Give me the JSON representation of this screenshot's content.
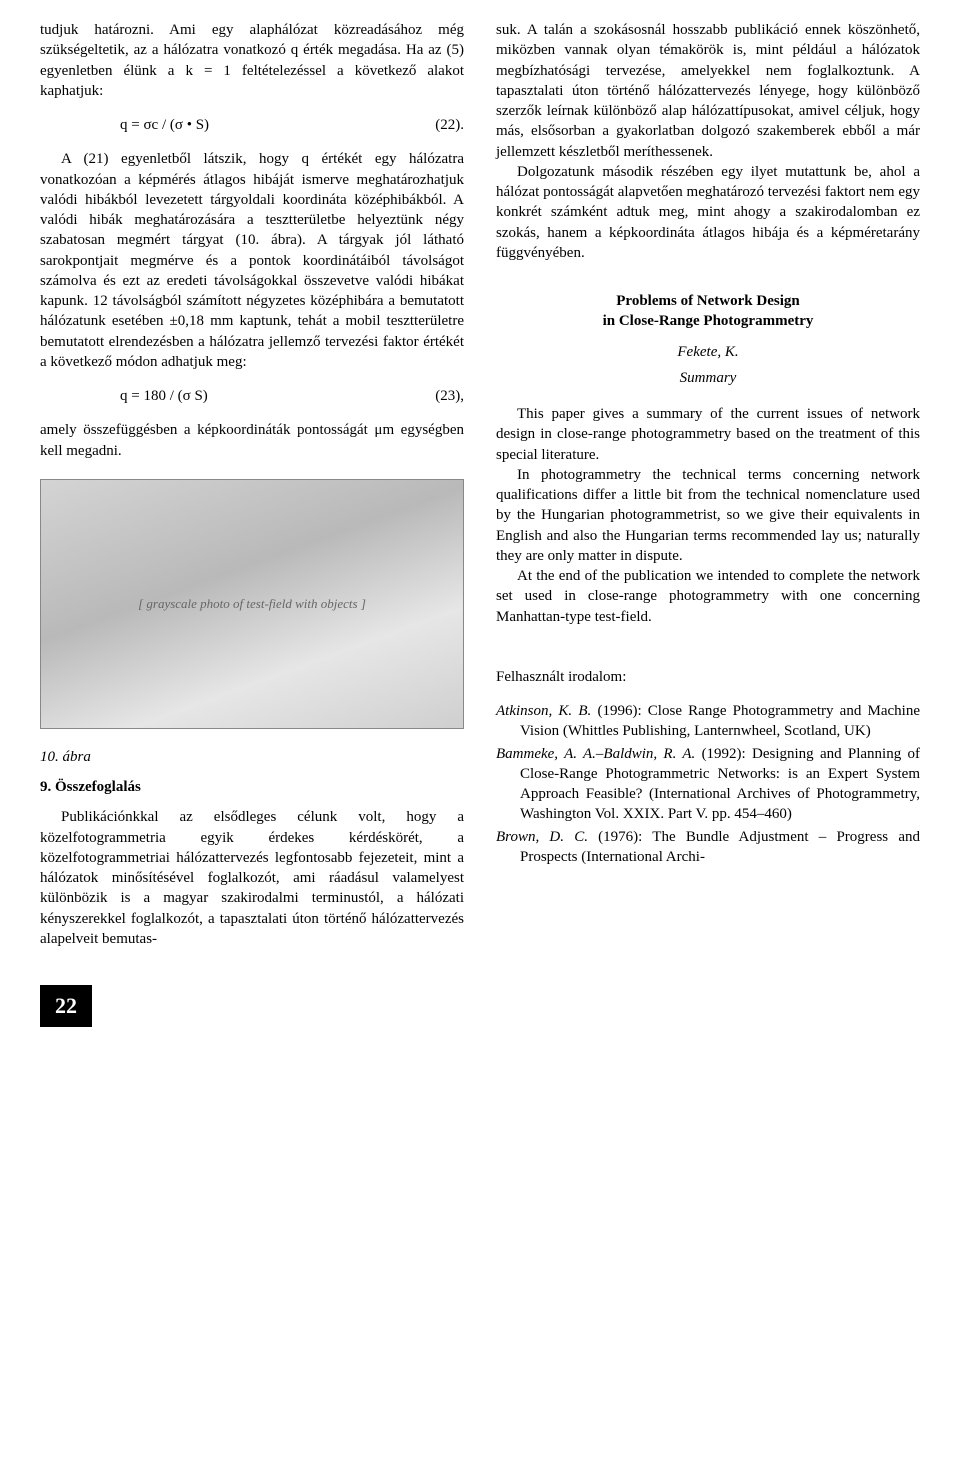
{
  "left": {
    "p1": "tudjuk határozni. Ami egy alaphálózat közreadásához még szükségeltetik, az a hálózatra vonatkozó q érték megadása. Ha az (5) egyenletben élünk a k = 1 feltételezéssel a következő alakot kaphatjuk:",
    "eq1": "q = σc / (σ • S)",
    "eq1num": "(22).",
    "p2": "A (21) egyenletből látszik, hogy q értékét egy hálózatra vonatkozóan a képmérés átlagos hibáját ismerve meghatározhatjuk valódi hibákból levezetett tárgyoldali koordináta középhibákból. A valódi hibák meghatározására a tesztterületbe helyeztünk négy szabatosan megmért tárgyat (10. ábra). A tárgyak jól látható sarokpontjait megmérve és a pontok koordinátáiból távolságot számolva és ezt az eredeti távolságokkal összevetve valódi hibákat kapunk. 12 távolságból számított négyzetes középhibára a bemutatott hálózatunk esetében ±0,18 mm kaptunk, tehát a mobil tesztterületre bemutatott elrendezésben a hálózatra jellemző tervezési faktor értékét a következő módon adhatjuk meg:",
    "eq2": "q = 180 / (σ S)",
    "eq2num": "(23),",
    "p3": "amely összefüggésben a képkoordináták pontosságát μm egységben kell megadni.",
    "figcaption": "10. ábra",
    "figplaceholder": "[ grayscale photo of test-field with objects ]",
    "sec9": "9. Összefoglalás",
    "p4": "Publikációnkkal az elsődleges célunk volt, hogy a közelfotogrammetria egyik érdekes kérdéskörét, a közelfotogrammetriai hálózattervezés legfontosabb fejezeteit, mint a hálózatok minősítésével foglalkozót, ami ráadásul valamelyest különbözik is a magyar szakirodalmi terminustól, a hálózati kényszerekkel foglalkozót, a tapasztalati úton történő hálózattervezés alapelveit bemutas-"
  },
  "right": {
    "p1": "suk. A talán a szokásosnál hosszabb publikáció ennek köszönhető, miközben vannak olyan témakörök is, mint például a hálózatok megbízhatósági tervezése, amelyekkel nem foglalkoztunk. A tapasztalati úton történő hálózattervezés lényege, hogy különböző szerzők leírnak különböző alap hálózattípusokat, amivel céljuk, hogy más, elsősorban a gyakorlatban dolgozó szakemberek ebből a már jellemzett készletből meríthessenek.",
    "p2": "Dolgozatunk második részében egy ilyet mutattunk be, ahol a hálózat pontosságát alapvetően meghatározó tervezési faktort nem egy konkrét számként adtuk meg, mint ahogy a szakirodalomban ez szokás, hanem a képkoordináta átlagos hibája és a képméretarány függvényében.",
    "etitle1": "Problems of Network Design",
    "etitle2": "in Close-Range Photogrammetry",
    "eauthor": "Fekete, K.",
    "esummary": "Summary",
    "ep1": "This paper gives a summary of the current issues of network design in close-range photogrammetry based on the treatment of this special literature.",
    "ep2": "In photogrammetry the technical terms concerning network qualifications differ a little bit from the technical nomenclature used by the Hungarian photogrammetrist, so we give their equivalents in English and also the Hungarian terms recommended lay us; naturally they are only matter in dispute.",
    "ep3": "At the end of the publication we intended to complete the network set used in close-range photogrammetry with one concerning Manhattan-type test-field.",
    "refshead": "Felhasznált irodalom:",
    "ref1a": "Atkinson, K. B.",
    "ref1b": " (1996): Close Range Photogrammetry and Machine Vision (Whittles Publishing, Lanternwheel, Scotland, UK)",
    "ref2a": "Bammeke, A. A.–Baldwin, R. A.",
    "ref2b": " (1992): Designing and Planning of Close-Range Photogrammetric Networks: is an Expert System Approach Feasible? (International Archives of Photogrammetry, Washington Vol. XXIX. Part V. pp. 454–460)",
    "ref3a": "Brown, D. C.",
    "ref3b": " (1976): The Bundle Adjustment – Progress and Prospects (International Archi-"
  },
  "pagenum": "22"
}
